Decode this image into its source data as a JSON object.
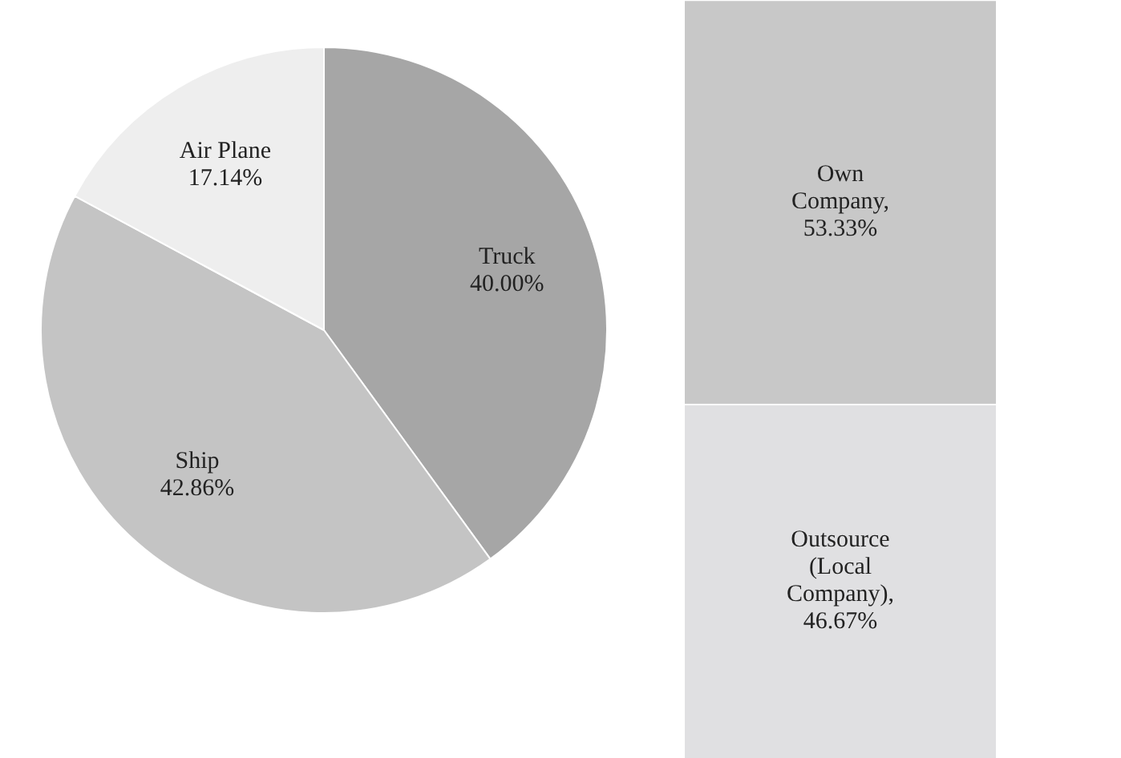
{
  "chart_data": [
    {
      "type": "pie",
      "categories": [
        "Truck",
        "Ship",
        "Air Plane"
      ],
      "values": [
        40,
        42.86,
        17.14
      ],
      "colors": [
        "#a6a6a6",
        "#c4c4c4",
        "#eeeeee"
      ],
      "value_labels": [
        "40.00%",
        "42.86%",
        "17.14%"
      ]
    },
    {
      "type": "bar",
      "stacked": true,
      "categories": [
        null
      ],
      "ylim": [
        0,
        100
      ],
      "tick_labels": false,
      "grid": false,
      "series": [
        {
          "name": "Outsource (Local Company),",
          "color": "#e0e0e2",
          "values": [
            46.67
          ],
          "value_labels": [
            "46.67%"
          ]
        },
        {
          "name": "Own Company,",
          "color": "#c8c8c8",
          "values": [
            53.33
          ],
          "value_labels": [
            "53.33%"
          ]
        }
      ]
    }
  ]
}
